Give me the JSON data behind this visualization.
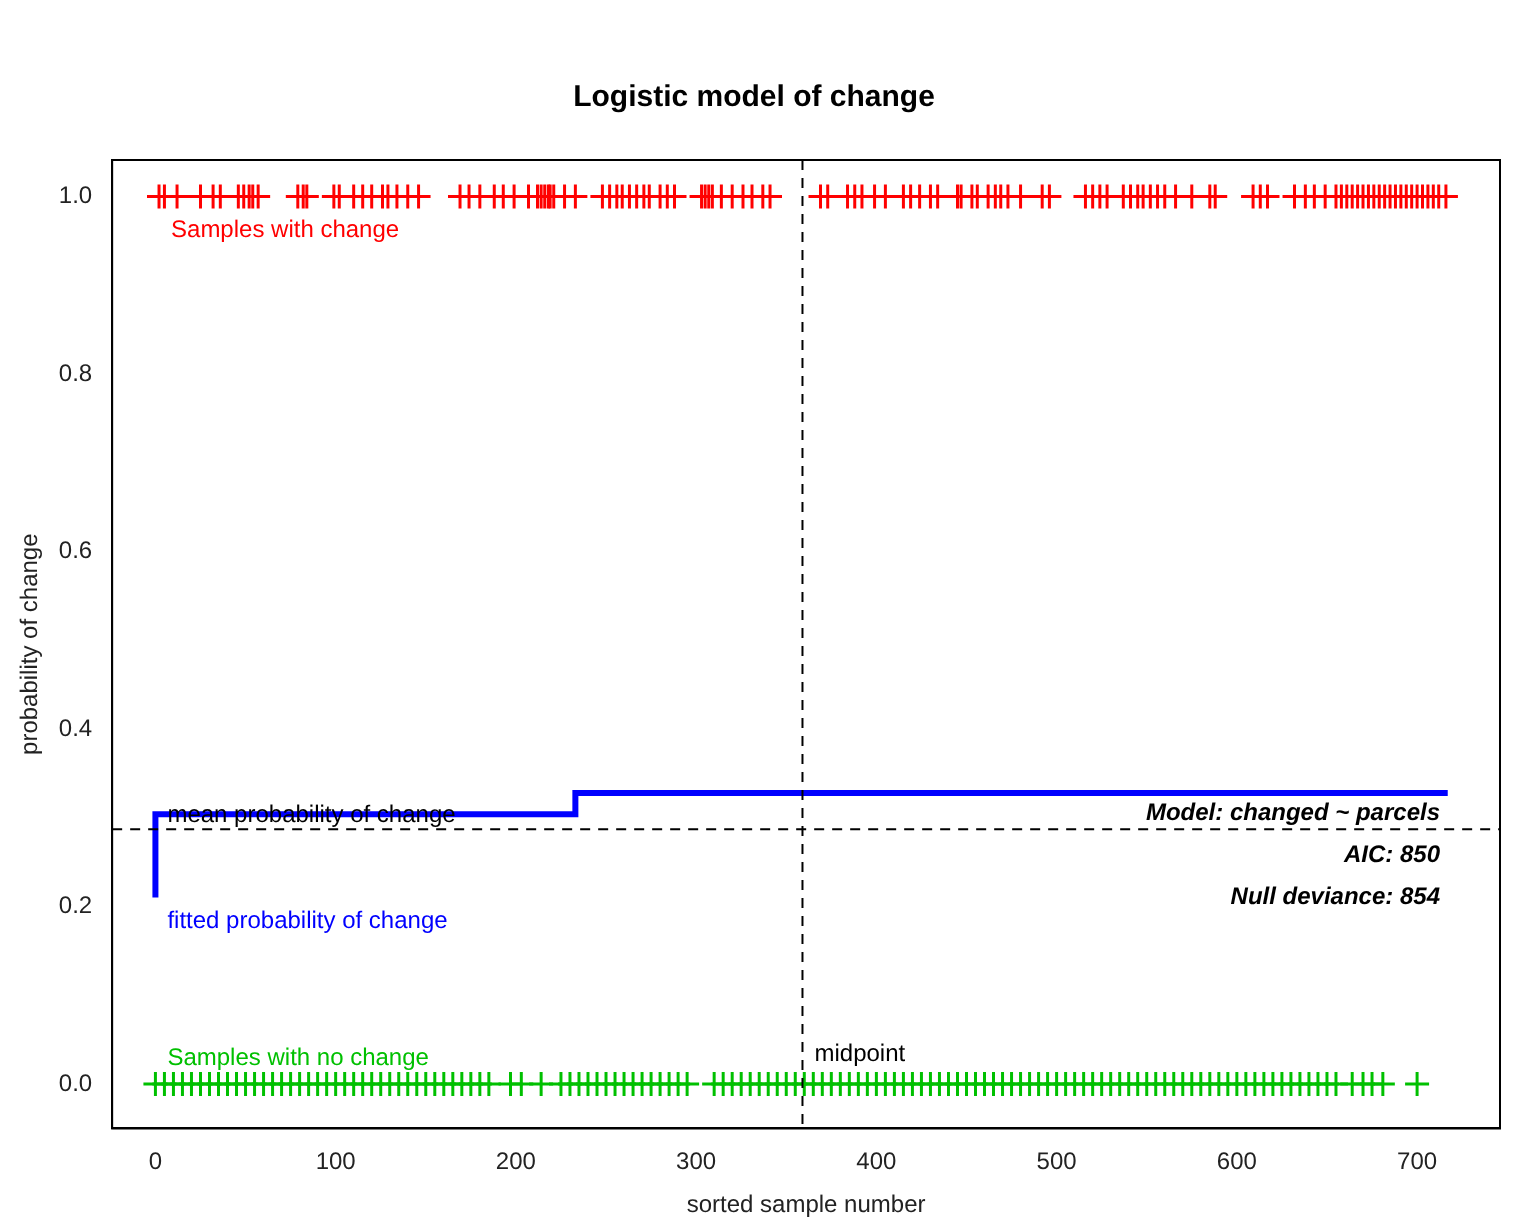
{
  "chart_data": {
    "type": "scatter",
    "title": "Logistic model of change",
    "xlabel": "sorted sample number",
    "ylabel": "probability of change",
    "xlim": [
      -24,
      746
    ],
    "xticks": [
      0,
      100,
      200,
      300,
      400,
      500,
      600,
      700
    ],
    "ylim": [
      -0.05,
      1.041
    ],
    "yticks": [
      {
        "value": 0,
        "label": "0.0"
      },
      {
        "value": 0.2,
        "label": "0.2"
      },
      {
        "value": 0.4,
        "label": "0.4"
      },
      {
        "value": 0.6,
        "label": "0.6"
      },
      {
        "value": 0.8,
        "label": "0.8"
      },
      {
        "value": 1,
        "label": "1.0"
      }
    ],
    "grid": false,
    "legend": false,
    "series": [
      {
        "name": "Samples with change",
        "marker": "cross",
        "color": "#ff0000",
        "x": [
          2,
          5,
          12,
          25,
          32,
          36,
          46,
          49,
          52,
          54,
          57,
          79,
          82,
          84,
          99,
          102,
          110,
          115,
          120,
          126,
          129,
          134,
          140,
          146,
          169,
          174,
          180,
          188,
          193,
          199,
          207,
          212,
          214,
          216,
          218,
          219,
          221,
          227,
          233,
          248,
          252,
          256,
          259,
          263,
          267,
          271,
          274,
          280,
          284,
          288,
          303,
          305,
          307,
          309,
          314,
          320,
          326,
          331,
          337,
          341,
          369,
          373,
          384,
          388,
          392,
          399,
          405,
          415,
          419,
          424,
          430,
          434,
          445,
          447,
          453,
          456,
          462,
          466,
          469,
          473,
          480,
          492,
          496,
          516,
          520,
          524,
          528,
          537,
          541,
          545,
          548,
          552,
          556,
          560,
          566,
          575,
          585,
          588,
          609,
          613,
          617,
          632,
          638,
          643,
          649,
          655,
          658,
          661,
          664,
          667,
          670,
          673,
          676,
          679,
          682,
          685,
          688,
          691,
          694,
          697,
          700,
          703,
          706,
          709,
          712,
          716
        ],
        "values": [
          1,
          1,
          1,
          1,
          1,
          1,
          1,
          1,
          1,
          1,
          1,
          1,
          1,
          1,
          1,
          1,
          1,
          1,
          1,
          1,
          1,
          1,
          1,
          1,
          1,
          1,
          1,
          1,
          1,
          1,
          1,
          1,
          1,
          1,
          1,
          1,
          1,
          1,
          1,
          1,
          1,
          1,
          1,
          1,
          1,
          1,
          1,
          1,
          1,
          1,
          1,
          1,
          1,
          1,
          1,
          1,
          1,
          1,
          1,
          1,
          1,
          1,
          1,
          1,
          1,
          1,
          1,
          1,
          1,
          1,
          1,
          1,
          1,
          1,
          1,
          1,
          1,
          1,
          1,
          1,
          1,
          1,
          1,
          1,
          1,
          1,
          1,
          1,
          1,
          1,
          1,
          1,
          1,
          1,
          1,
          1,
          1,
          1,
          1,
          1,
          1,
          1,
          1,
          1,
          1,
          1,
          1,
          1,
          1,
          1,
          1,
          1,
          1,
          1,
          1,
          1,
          1,
          1,
          1,
          1,
          1,
          1,
          1,
          1,
          1,
          1
        ]
      },
      {
        "name": "Samples with no change",
        "marker": "cross",
        "color": "#00c000",
        "x": [
          0,
          5,
          10,
          15,
          20,
          25,
          30,
          35,
          40,
          45,
          50,
          55,
          60,
          65,
          70,
          75,
          80,
          85,
          90,
          95,
          100,
          105,
          110,
          115,
          120,
          125,
          130,
          135,
          140,
          145,
          150,
          155,
          160,
          165,
          170,
          175,
          180,
          185,
          197,
          203,
          214,
          225,
          230,
          235,
          240,
          245,
          250,
          255,
          260,
          265,
          270,
          275,
          280,
          285,
          290,
          295,
          310,
          315,
          320,
          325,
          330,
          335,
          340,
          345,
          350,
          355,
          360,
          365,
          370,
          375,
          380,
          385,
          390,
          395,
          400,
          405,
          410,
          415,
          420,
          425,
          430,
          435,
          440,
          445,
          450,
          455,
          460,
          465,
          470,
          475,
          480,
          485,
          490,
          495,
          500,
          505,
          510,
          515,
          520,
          525,
          530,
          535,
          540,
          545,
          550,
          555,
          560,
          565,
          570,
          575,
          580,
          585,
          590,
          595,
          600,
          605,
          610,
          615,
          620,
          625,
          630,
          635,
          640,
          645,
          650,
          655,
          664,
          670,
          675,
          681,
          700
        ],
        "values": [
          0,
          0,
          0,
          0,
          0,
          0,
          0,
          0,
          0,
          0,
          0,
          0,
          0,
          0,
          0,
          0,
          0,
          0,
          0,
          0,
          0,
          0,
          0,
          0,
          0,
          0,
          0,
          0,
          0,
          0,
          0,
          0,
          0,
          0,
          0,
          0,
          0,
          0,
          0,
          0,
          0,
          0,
          0,
          0,
          0,
          0,
          0,
          0,
          0,
          0,
          0,
          0,
          0,
          0,
          0,
          0,
          0,
          0,
          0,
          0,
          0,
          0,
          0,
          0,
          0,
          0,
          0,
          0,
          0,
          0,
          0,
          0,
          0,
          0,
          0,
          0,
          0,
          0,
          0,
          0,
          0,
          0,
          0,
          0,
          0,
          0,
          0,
          0,
          0,
          0,
          0,
          0,
          0,
          0,
          0,
          0,
          0,
          0,
          0,
          0,
          0,
          0,
          0,
          0,
          0,
          0,
          0,
          0,
          0,
          0,
          0,
          0,
          0,
          0,
          0,
          0,
          0,
          0,
          0,
          0,
          0,
          0,
          0,
          0,
          0,
          0,
          0,
          0,
          0,
          0,
          0
        ]
      },
      {
        "name": "fitted probability of change",
        "type": "step",
        "marker": "none",
        "color": "#0000ff",
        "x": [
          0,
          233,
          309,
          717
        ],
        "values": [
          0.21,
          0.304,
          0.328,
          0.328
        ]
      }
    ],
    "ref_lines": [
      {
        "axis": "y",
        "value": 0.287,
        "label": "mean probability of change",
        "color": "#000000",
        "line_style": "dashed"
      },
      {
        "axis": "x",
        "value": 359,
        "label": "midpoint",
        "color": "#000000",
        "line_style": "dashed"
      }
    ],
    "annotations": [
      "Model: changed ~ parcels",
      "AIC: 850",
      "Null deviance: 854"
    ]
  }
}
